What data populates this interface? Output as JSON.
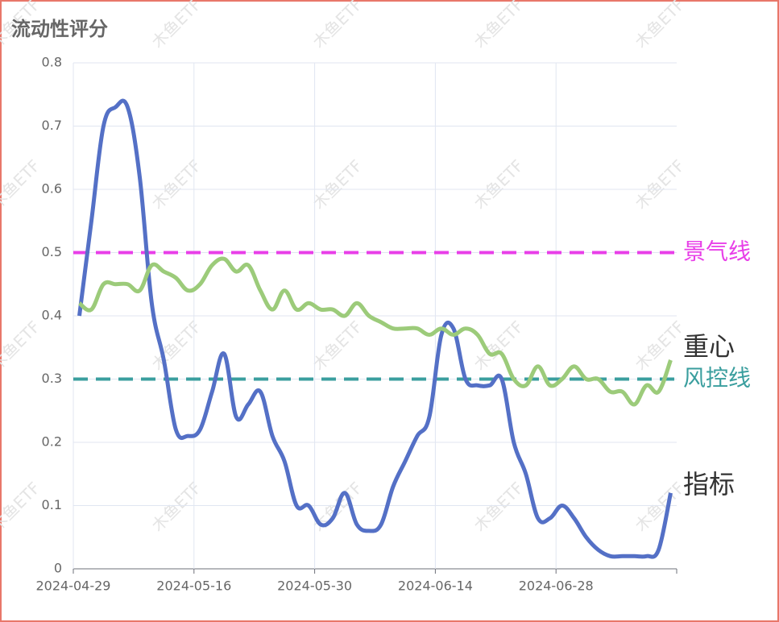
{
  "chart_data": {
    "type": "line",
    "title": "流动性评分",
    "watermark": "木鱼ETF",
    "categories": [
      "2024-04-29",
      null,
      null,
      null,
      null,
      null,
      null,
      null,
      null,
      null,
      "2024-05-16",
      null,
      null,
      null,
      null,
      null,
      null,
      null,
      null,
      null,
      "2024-05-30",
      null,
      null,
      null,
      null,
      null,
      null,
      null,
      null,
      null,
      "2024-06-14",
      null,
      null,
      null,
      null,
      null,
      null,
      null,
      null,
      null,
      "2024-06-28",
      null,
      null,
      null,
      null,
      null,
      null,
      null,
      null,
      null
    ],
    "series": [
      {
        "name": "指标",
        "color": "#5470c6",
        "values": [
          0.4,
          0.55,
          0.7,
          0.73,
          0.73,
          0.62,
          0.42,
          0.33,
          0.22,
          0.21,
          0.22,
          0.28,
          0.34,
          0.24,
          0.26,
          0.28,
          0.21,
          0.17,
          0.1,
          0.1,
          0.07,
          0.08,
          0.12,
          0.07,
          0.06,
          0.07,
          0.13,
          0.17,
          0.21,
          0.24,
          0.37,
          0.38,
          0.3,
          0.29,
          0.29,
          0.3,
          0.2,
          0.15,
          0.08,
          0.08,
          0.1,
          0.08,
          0.05,
          0.03,
          0.02,
          0.02,
          0.02,
          0.02,
          0.03,
          0.12
        ]
      },
      {
        "name": "重心",
        "color": "#9ccb7a",
        "values": [
          0.42,
          0.41,
          0.45,
          0.45,
          0.45,
          0.44,
          0.48,
          0.47,
          0.46,
          0.44,
          0.45,
          0.48,
          0.49,
          0.47,
          0.48,
          0.44,
          0.41,
          0.44,
          0.41,
          0.42,
          0.41,
          0.41,
          0.4,
          0.42,
          0.4,
          0.39,
          0.38,
          0.38,
          0.38,
          0.37,
          0.38,
          0.37,
          0.38,
          0.37,
          0.34,
          0.34,
          0.3,
          0.29,
          0.32,
          0.29,
          0.3,
          0.32,
          0.3,
          0.3,
          0.28,
          0.28,
          0.26,
          0.29,
          0.28,
          0.33
        ]
      }
    ],
    "reference_lines": [
      {
        "name": "景气线",
        "value": 0.5,
        "color": "#e83fe8"
      },
      {
        "name": "风控线",
        "value": 0.3,
        "color": "#3a9e9e"
      }
    ],
    "ylim": [
      0,
      0.8
    ],
    "yticks": [
      0,
      0.1,
      0.2,
      0.3,
      0.4,
      0.5,
      0.6,
      0.7,
      0.8
    ],
    "grid": true
  }
}
